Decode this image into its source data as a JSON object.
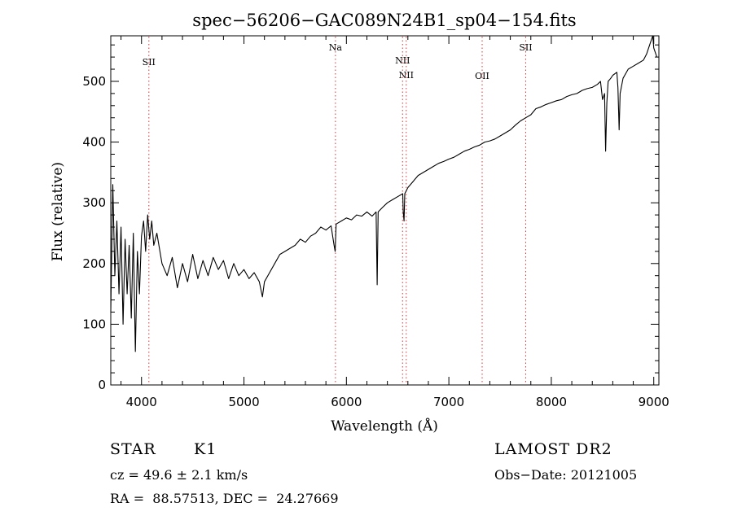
{
  "chart_data": {
    "type": "line",
    "title": "spec−56206−GAC089N24B1_sp04−154.fits",
    "xlabel": "Wavelength (Å)",
    "ylabel": "Flux (relative)",
    "xlim": [
      3700,
      9050
    ],
    "ylim": [
      0,
      575
    ],
    "xticks": [
      4000,
      5000,
      6000,
      7000,
      8000,
      9000
    ],
    "yticks": [
      0,
      100,
      200,
      300,
      400,
      500
    ],
    "x": [
      3700,
      3720,
      3740,
      3760,
      3780,
      3800,
      3820,
      3840,
      3860,
      3880,
      3900,
      3920,
      3940,
      3960,
      3980,
      4000,
      4020,
      4040,
      4060,
      4080,
      4100,
      4120,
      4150,
      4200,
      4250,
      4300,
      4350,
      4400,
      4450,
      4500,
      4550,
      4600,
      4650,
      4700,
      4750,
      4800,
      4850,
      4900,
      4950,
      5000,
      5050,
      5100,
      5150,
      5180,
      5200,
      5250,
      5300,
      5350,
      5400,
      5450,
      5500,
      5550,
      5600,
      5650,
      5700,
      5750,
      5800,
      5850,
      5880,
      5890,
      5900,
      5950,
      6000,
      6050,
      6100,
      6150,
      6200,
      6250,
      6290,
      6300,
      6310,
      6350,
      6400,
      6450,
      6500,
      6550,
      6555,
      6563,
      6570,
      6600,
      6650,
      6700,
      6750,
      6800,
      6850,
      6900,
      6950,
      7000,
      7050,
      7100,
      7150,
      7200,
      7250,
      7300,
      7350,
      7400,
      7450,
      7500,
      7550,
      7600,
      7650,
      7700,
      7750,
      7800,
      7850,
      7900,
      7950,
      8000,
      8050,
      8100,
      8150,
      8200,
      8250,
      8300,
      8350,
      8400,
      8450,
      8480,
      8500,
      8520,
      8530,
      8542,
      8555,
      8580,
      8600,
      8640,
      8650,
      8662,
      8672,
      8700,
      8750,
      8800,
      8850,
      8900,
      8930,
      8950,
      8970,
      8990,
      9000,
      9030
    ],
    "y": [
      120,
      330,
      180,
      270,
      150,
      260,
      100,
      240,
      150,
      230,
      110,
      250,
      55,
      220,
      150,
      245,
      270,
      220,
      280,
      240,
      270,
      230,
      250,
      200,
      180,
      210,
      160,
      200,
      170,
      215,
      175,
      205,
      180,
      210,
      190,
      205,
      175,
      200,
      180,
      190,
      175,
      185,
      170,
      145,
      170,
      185,
      200,
      215,
      220,
      225,
      230,
      240,
      235,
      245,
      250,
      260,
      255,
      262,
      230,
      220,
      265,
      270,
      275,
      272,
      280,
      278,
      285,
      278,
      285,
      165,
      285,
      292,
      300,
      305,
      310,
      315,
      285,
      270,
      315,
      325,
      335,
      345,
      350,
      355,
      360,
      365,
      368,
      372,
      375,
      380,
      385,
      388,
      392,
      395,
      400,
      402,
      405,
      410,
      415,
      420,
      428,
      435,
      440,
      445,
      455,
      458,
      462,
      465,
      468,
      470,
      475,
      478,
      480,
      485,
      488,
      490,
      495,
      500,
      470,
      480,
      385,
      465,
      500,
      505,
      510,
      515,
      490,
      420,
      480,
      505,
      520,
      525,
      530,
      535,
      545,
      555,
      565,
      575,
      555,
      540
    ],
    "line_markers": [
      {
        "label": "SII",
        "x": 4072
      },
      {
        "label": "Na",
        "x": 5893
      },
      {
        "label": "NII",
        "x": 6548
      },
      {
        "label": "NII",
        "x": 6584
      },
      {
        "label": "OII",
        "x": 7325
      },
      {
        "label": "SII",
        "x": 7750
      }
    ],
    "grid": false,
    "legend": "none"
  },
  "info": {
    "object_class": "STAR",
    "subclass": "K1",
    "survey": "LAMOST DR2",
    "redshift": "cz = 49.6 ± 2.1 km/s",
    "obs_date": "Obs−Date: 20121005",
    "coords": "RA =  88.57513, DEC =  24.27669"
  }
}
